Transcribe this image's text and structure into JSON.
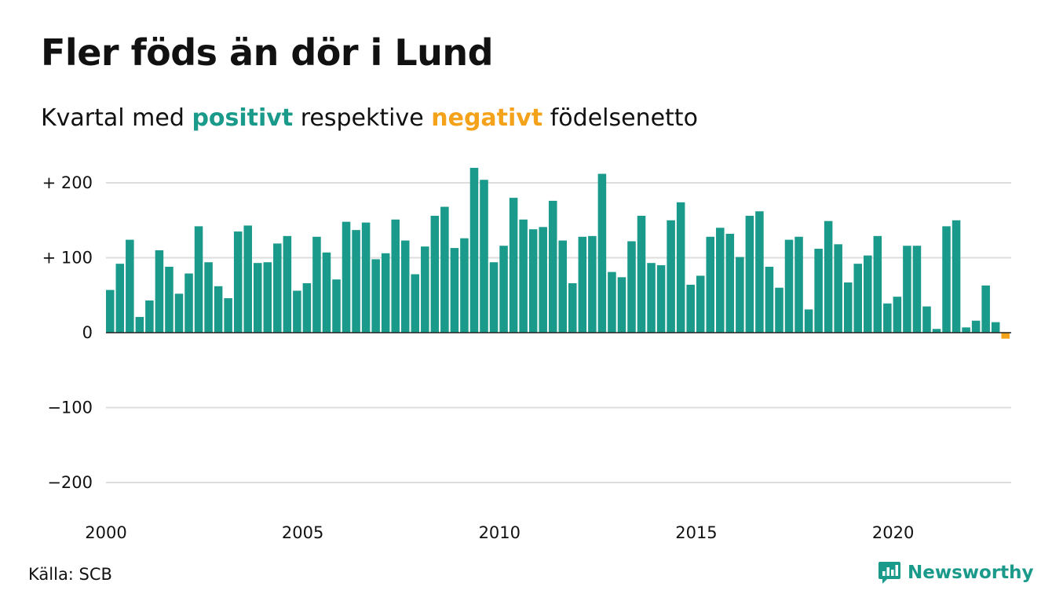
{
  "header": {
    "title": "Fler föds än dör i Lund",
    "subtitle_start": "Kvartal med",
    "subtitle_positive": "positivt",
    "subtitle_middle": "respektive",
    "subtitle_negative": "negativt",
    "subtitle_end": "födelsenetto"
  },
  "footer": {
    "source": "Källa: SCB",
    "brand": "Newsworthy",
    "brand_icon": "newsworthy-logo-icon"
  },
  "colors": {
    "positive": "#1a9a8a",
    "negative": "#f5a21b",
    "grid": "#dddddd",
    "text": "#111111"
  },
  "chart_data": {
    "type": "bar",
    "title": "Fler föds än dör i Lund",
    "subtitle": "Kvartal med positivt respektive negativt födelsenetto",
    "xlabel": "",
    "ylabel": "",
    "ylim": [
      -200,
      200
    ],
    "y_ticks": [
      {
        "value": 200,
        "label": "+ 200"
      },
      {
        "value": 100,
        "label": "+ 100"
      },
      {
        "value": 0,
        "label": "0"
      },
      {
        "value": -100,
        "label": "−100"
      },
      {
        "value": -200,
        "label": "−200"
      }
    ],
    "x_ticks": [
      "2000",
      "2005",
      "2010",
      "2015",
      "2020"
    ],
    "grid": true,
    "start_year": 2000,
    "start_quarter": 1,
    "values": [
      57,
      92,
      124,
      21,
      43,
      110,
      88,
      52,
      79,
      142,
      94,
      62,
      46,
      135,
      143,
      93,
      94,
      119,
      129,
      56,
      66,
      128,
      107,
      71,
      148,
      137,
      147,
      98,
      106,
      151,
      123,
      78,
      115,
      156,
      168,
      113,
      126,
      220,
      204,
      94,
      116,
      180,
      151,
      138,
      141,
      176,
      123,
      66,
      128,
      129,
      212,
      81,
      74,
      122,
      156,
      93,
      90,
      150,
      174,
      64,
      76,
      128,
      140,
      132,
      101,
      156,
      162,
      88,
      60,
      124,
      128,
      31,
      112,
      149,
      118,
      67,
      92,
      103,
      129,
      39,
      48,
      116,
      116,
      35,
      5,
      142,
      150,
      7,
      16,
      63,
      14,
      -8
    ]
  }
}
